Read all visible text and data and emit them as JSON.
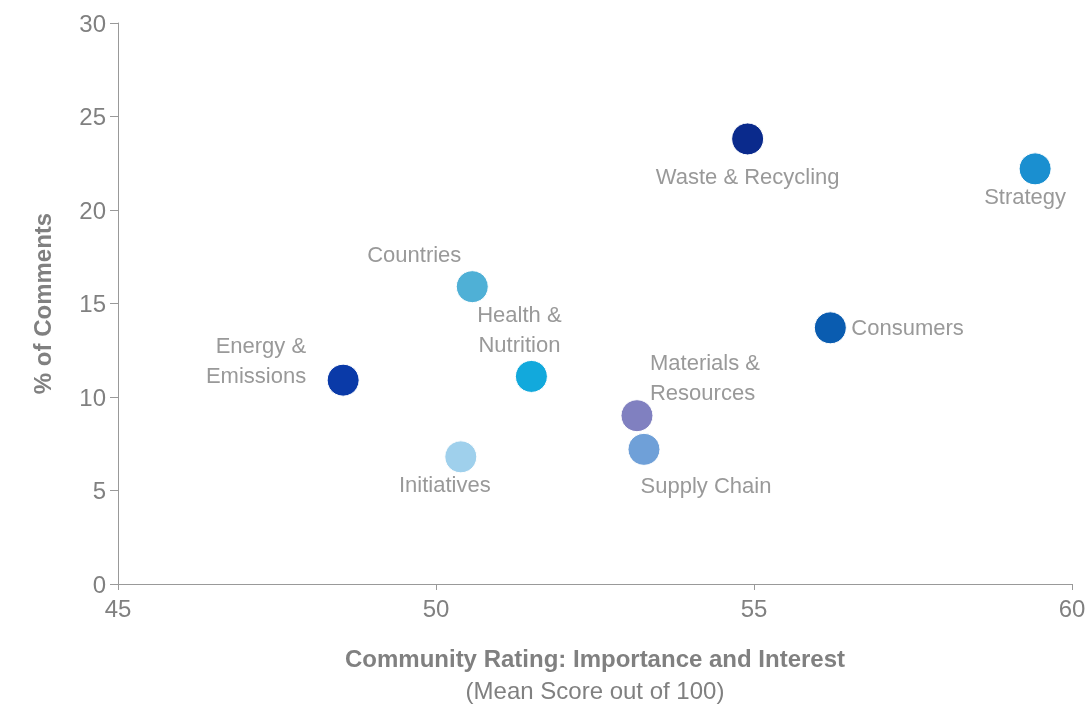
{
  "chart_data": {
    "type": "scatter",
    "xlabel": "Community Rating: Importance and Interest\n(Mean Score out of 100)",
    "ylabel": "% of Comments",
    "x": [
      59.42,
      54.9,
      56.2,
      50.57,
      48.54,
      51.5,
      53.16,
      53.27,
      50.39
    ],
    "values": [
      22.2,
      23.8,
      13.7,
      15.9,
      10.9,
      11.1,
      9.0,
      7.2,
      6.8
    ],
    "colors": [
      "#1a8fd0",
      "#0a2a8c",
      "#0a5cb0",
      "#4fb0d6",
      "#0a3aa8",
      "#12a9dc",
      "#8080c0",
      "#6fa0d8",
      "#9fd0ec"
    ],
    "annotations": [
      {
        "text": "Strategy",
        "x": 59.42,
        "y": 22.2
      },
      {
        "text": "Waste & Recycling",
        "x": 54.9,
        "y": 23.8
      },
      {
        "text": "Consumers",
        "x": 56.2,
        "y": 13.7
      },
      {
        "text": "Countries",
        "x": 50.57,
        "y": 15.9
      },
      {
        "text": "Energy &\nEmissions",
        "x": 48.54,
        "y": 10.9
      },
      {
        "text": "Health &\nNutrition",
        "x": 51.5,
        "y": 11.1
      },
      {
        "text": "Materials &\nResources",
        "x": 53.16,
        "y": 9.0
      },
      {
        "text": "Supply Chain",
        "x": 53.27,
        "y": 7.2
      },
      {
        "text": "Initiatives",
        "x": 50.39,
        "y": 6.8
      }
    ],
    "xlim": [
      45,
      60
    ],
    "xticks": [
      45,
      50,
      55,
      60
    ],
    "ylim": [
      0,
      30
    ],
    "yticks": [
      0,
      5,
      10,
      15,
      20,
      25,
      30
    ],
    "grid": false,
    "marker": "circle"
  }
}
